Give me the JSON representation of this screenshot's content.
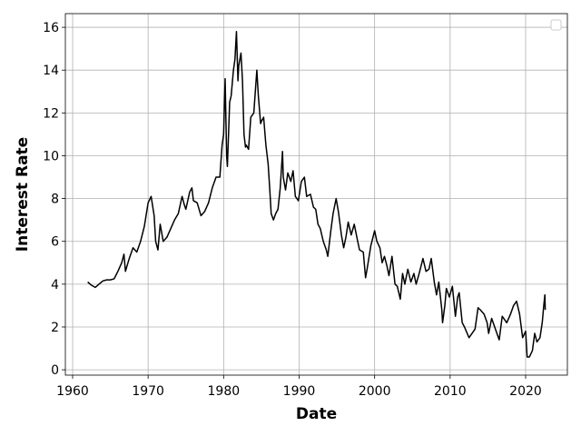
{
  "chart_data": {
    "type": "line",
    "x_label": "Date",
    "y_label": "Interest Rate",
    "xlim": [
      1959.04,
      2025.53
    ],
    "ylim": [
      -0.25,
      16.64
    ],
    "xticks": [
      1960,
      1970,
      1980,
      1990,
      2000,
      2010,
      2020
    ],
    "yticks": [
      0,
      2,
      4,
      6,
      8,
      10,
      12,
      14,
      16
    ],
    "grid": true,
    "legend": "upper right",
    "series": [
      {
        "color": "#000000",
        "x": [
          1962.0,
          1962.5,
          1963,
          1963.5,
          1964,
          1964.5,
          1965,
          1965.5,
          1966,
          1966.5,
          1966.8,
          1967,
          1967.5,
          1968,
          1968.5,
          1969,
          1969.5,
          1970,
          1970.4,
          1970.8,
          1971,
          1971.3,
          1971.6,
          1972,
          1972.5,
          1973,
          1973.5,
          1974,
          1974.5,
          1974.8,
          1975,
          1975.5,
          1975.8,
          1976,
          1976.5,
          1977,
          1977.5,
          1978,
          1978.5,
          1979,
          1979.5,
          1979.8,
          1980,
          1980.2,
          1980.4,
          1980.5,
          1980.8,
          1981,
          1981.3,
          1981.5,
          1981.7,
          1981.9,
          1982,
          1982.3,
          1982.5,
          1982.7,
          1982.9,
          1983,
          1983.3,
          1983.6,
          1984,
          1984.4,
          1984.6,
          1984.9,
          1985,
          1985.3,
          1985.6,
          1985.9,
          1986.1,
          1986.3,
          1986.6,
          1986.9,
          1987.2,
          1987.5,
          1987.8,
          1987.9,
          1988.2,
          1988.5,
          1988.9,
          1989.2,
          1989.5,
          1989.9,
          1990.3,
          1990.7,
          1991,
          1991.5,
          1991.9,
          1992.2,
          1992.5,
          1992.8,
          1993.2,
          1993.6,
          1993.8,
          1994.2,
          1994.5,
          1994.9,
          1995.2,
          1995.6,
          1995.9,
          1996.2,
          1996.5,
          1996.9,
          1997.3,
          1997.7,
          1998,
          1998.5,
          1998.8,
          1999,
          1999.5,
          2000,
          2000.3,
          2000.7,
          2001,
          2001.3,
          2001.6,
          2001.9,
          2002.3,
          2002.7,
          2003,
          2003.4,
          2003.7,
          2004,
          2004.4,
          2004.8,
          2005.2,
          2005.5,
          2005.9,
          2006.4,
          2006.8,
          2007.2,
          2007.5,
          2007.9,
          2008.2,
          2008.5,
          2008.9,
          2009,
          2009.3,
          2009.5,
          2009.9,
          2010.3,
          2010.7,
          2011,
          2011.2,
          2011.6,
          2011.9,
          2012.5,
          2012.9,
          2013.3,
          2013.7,
          2014,
          2014.5,
          2014.9,
          2015.1,
          2015.5,
          2016,
          2016.5,
          2016.9,
          2017.5,
          2018,
          2018.4,
          2018.8,
          2019.2,
          2019.6,
          2020,
          2020.2,
          2020.5,
          2020.9,
          2021.2,
          2021.5,
          2021.9,
          2022.2,
          2022.4,
          2022.55,
          2022.6
        ],
        "values": [
          4.1,
          3.95,
          3.85,
          4.0,
          4.15,
          4.2,
          4.2,
          4.25,
          4.6,
          5.0,
          5.4,
          4.6,
          5.2,
          5.7,
          5.5,
          6.0,
          6.7,
          7.8,
          8.1,
          7.2,
          6.0,
          5.6,
          6.8,
          6.0,
          6.2,
          6.6,
          7.0,
          7.3,
          8.1,
          7.7,
          7.5,
          8.3,
          8.5,
          7.9,
          7.8,
          7.2,
          7.4,
          7.8,
          8.5,
          9.0,
          9.0,
          10.5,
          11.0,
          13.6,
          10.0,
          9.5,
          12.5,
          12.8,
          14.0,
          14.5,
          15.8,
          13.5,
          14.2,
          14.8,
          13.5,
          11.0,
          10.4,
          10.5,
          10.3,
          11.8,
          12.0,
          14.0,
          12.8,
          11.5,
          11.6,
          11.8,
          10.5,
          9.6,
          8.5,
          7.3,
          7.0,
          7.3,
          7.5,
          8.5,
          10.2,
          9.0,
          8.4,
          9.2,
          8.8,
          9.3,
          8.1,
          7.9,
          8.8,
          9.0,
          8.1,
          8.2,
          7.6,
          7.5,
          6.8,
          6.6,
          6.0,
          5.6,
          5.3,
          6.5,
          7.3,
          8.0,
          7.4,
          6.3,
          5.7,
          6.2,
          6.9,
          6.3,
          6.8,
          6.1,
          5.6,
          5.5,
          4.3,
          4.7,
          5.8,
          6.5,
          6.0,
          5.7,
          5.0,
          5.3,
          4.9,
          4.4,
          5.3,
          4.0,
          3.9,
          3.3,
          4.5,
          4.0,
          4.7,
          4.1,
          4.5,
          4.0,
          4.5,
          5.2,
          4.6,
          4.7,
          5.2,
          4.1,
          3.5,
          4.1,
          2.8,
          2.2,
          3.0,
          3.8,
          3.4,
          3.9,
          2.5,
          3.4,
          3.6,
          2.2,
          2.0,
          1.5,
          1.7,
          1.9,
          2.9,
          2.8,
          2.6,
          2.2,
          1.7,
          2.4,
          1.9,
          1.4,
          2.5,
          2.2,
          2.6,
          3.0,
          3.2,
          2.6,
          1.5,
          1.8,
          0.6,
          0.6,
          0.9,
          1.7,
          1.3,
          1.5,
          2.2,
          3.0,
          3.5,
          2.8
        ]
      }
    ]
  }
}
